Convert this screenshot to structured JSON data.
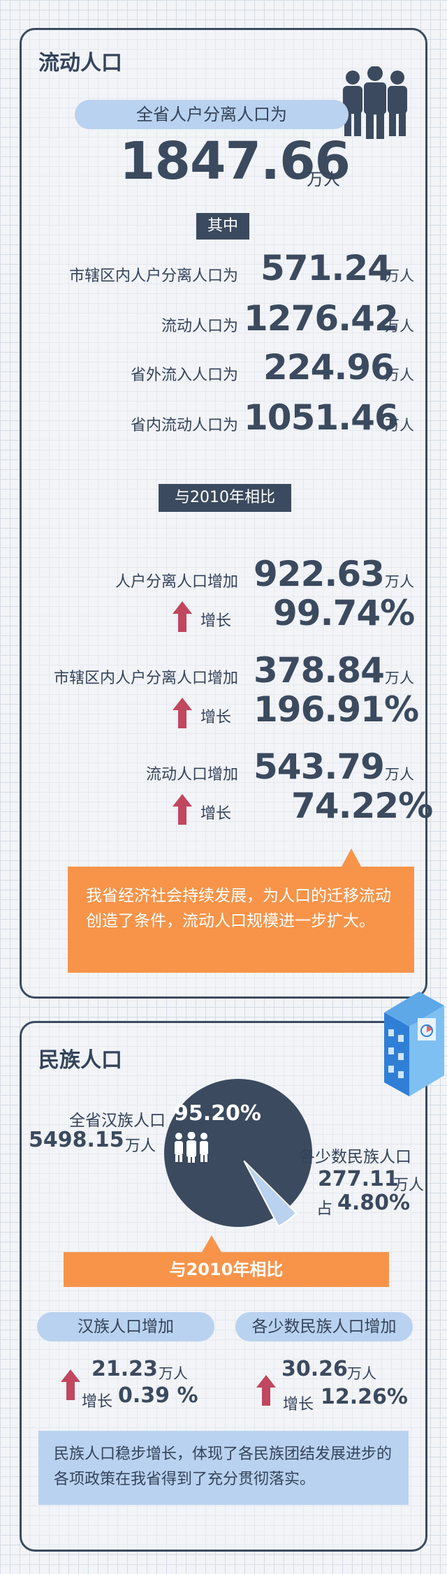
{
  "floating": {
    "title": "流动人口",
    "total_pill": "全省人户分离人口为",
    "total_value": "1847.66",
    "total_unit": "万人",
    "of_which": "其中",
    "rows": [
      {
        "label": "市辖区内人户分离人口为",
        "value": "571.24",
        "unit": "万人"
      },
      {
        "label": "流动人口为",
        "value": "1276.42",
        "unit": "万人"
      },
      {
        "label": "省外流入人口为",
        "value": "224.96",
        "unit": "万人"
      },
      {
        "label": "省内流动人口为",
        "value": "1051.46",
        "unit": "万人"
      }
    ],
    "compare": "与2010年相比",
    "changes": [
      {
        "label": "人户分离人口增加",
        "value": "922.63",
        "unit": "万人",
        "growth_label": "增长",
        "growth": "99.74%"
      },
      {
        "label": "市辖区内人户分离人口增加",
        "value": "378.84",
        "unit": "万人",
        "growth_label": "增长",
        "growth": "196.91%"
      },
      {
        "label": "流动人口增加",
        "value": "543.79",
        "unit": "万人",
        "growth_label": "增长",
        "growth": "74.22%"
      }
    ],
    "note": "我省经济社会持续发展，为人口的迁移流动创造了条件，流动人口规模进一步扩大。"
  },
  "ethnic": {
    "title": "民族人口",
    "han_label": "全省汉族人口",
    "han_value": "5498.15",
    "han_unit": "万人",
    "pie_percent": "95.20%",
    "han_share": 0.952,
    "minority_label": "各少数民族人口",
    "minority_value": "277.11",
    "minority_unit": "万人",
    "minority_share_prefix": "占",
    "minority_share": "4.80%",
    "compare": "与2010年相比",
    "han_inc_pill": "汉族人口增加",
    "min_inc_pill": "各少数民族人口增加",
    "han_inc_value": "21.23",
    "han_inc_unit": "万人",
    "han_growth_label": "增长",
    "han_growth": "0.39 %",
    "min_inc_value": "30.26",
    "min_inc_unit": "万人",
    "min_growth_label": "增长",
    "min_growth": "12.26%",
    "note": "民族人口稳步增长，体现了各民族团结发展进步的各项政策在我省得到了充分贯彻落实。"
  },
  "colors": {
    "dark": "#3b4a5e",
    "blue_pill": "#b9d2ef",
    "orange": "#f7944a",
    "red_arrow": "#c0475f"
  }
}
